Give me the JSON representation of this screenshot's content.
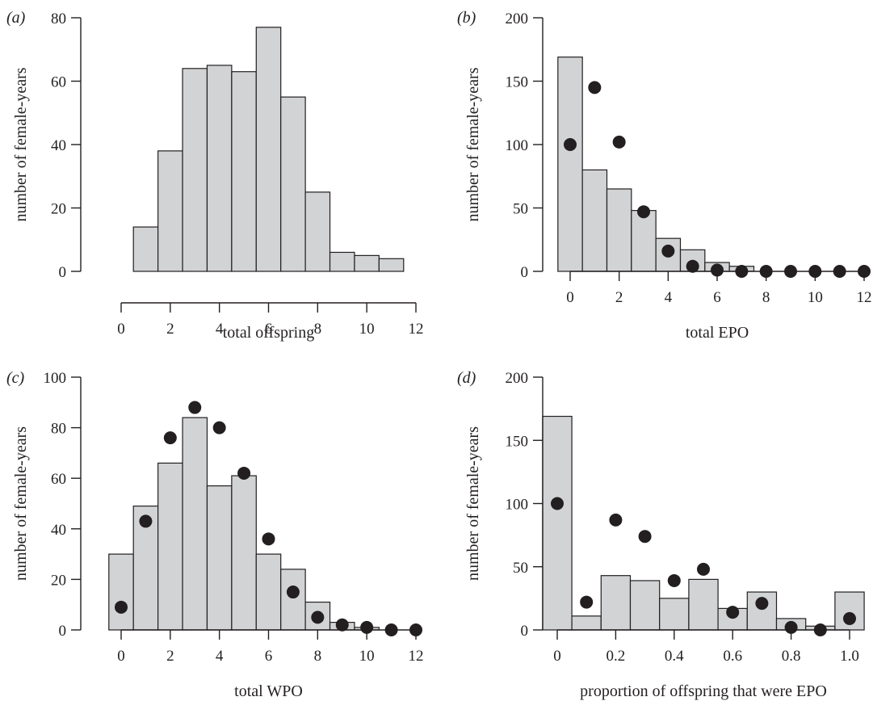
{
  "chart_data": [
    {
      "type": "bar",
      "panel_label": "(a)",
      "xlabel": "total offspring",
      "ylabel": "number of female-years",
      "xlim": [
        0,
        12
      ],
      "ylim": [
        0,
        80
      ],
      "xticks": [
        "0",
        "2",
        "4",
        "6",
        "8",
        "10",
        "12"
      ],
      "yticks": [
        "0",
        "20",
        "40",
        "60",
        "80"
      ],
      "grid": false,
      "series": [
        {
          "kind": "histogram",
          "bin_start": 0.5,
          "bin_width": 1,
          "values": [
            14,
            38,
            64,
            65,
            63,
            77,
            55,
            25,
            6,
            5,
            4
          ]
        }
      ]
    },
    {
      "type": "bar",
      "panel_label": "(b)",
      "xlabel": "total EPO",
      "ylabel": "number of female-years",
      "xlim": [
        0,
        12
      ],
      "ylim": [
        0,
        200
      ],
      "xticks": [
        "0",
        "2",
        "4",
        "6",
        "8",
        "10",
        "12"
      ],
      "yticks": [
        "0",
        "50",
        "100",
        "150",
        "200"
      ],
      "grid": false,
      "series": [
        {
          "kind": "histogram",
          "bin_start": -0.5,
          "bin_width": 1,
          "values": [
            169,
            80,
            65,
            48,
            26,
            17,
            7,
            4,
            0,
            0,
            0,
            0,
            0
          ]
        },
        {
          "kind": "points",
          "x": [
            0,
            1,
            2,
            3,
            4,
            5,
            6,
            7,
            8,
            9,
            10,
            11,
            12
          ],
          "values": [
            100,
            145,
            102,
            47,
            16,
            4,
            1,
            0,
            0,
            0,
            0,
            0,
            0
          ]
        }
      ]
    },
    {
      "type": "bar",
      "panel_label": "(c)",
      "xlabel": "total WPO",
      "ylabel": "number of female-years",
      "xlim": [
        0,
        12
      ],
      "ylim": [
        0,
        100
      ],
      "xticks": [
        "0",
        "2",
        "4",
        "6",
        "8",
        "10",
        "12"
      ],
      "yticks": [
        "0",
        "20",
        "40",
        "60",
        "80",
        "100"
      ],
      "grid": false,
      "series": [
        {
          "kind": "histogram",
          "bin_start": -0.5,
          "bin_width": 1,
          "values": [
            30,
            49,
            66,
            84,
            57,
            61,
            30,
            24,
            11,
            3,
            1,
            0,
            0
          ]
        },
        {
          "kind": "points",
          "x": [
            0,
            1,
            2,
            3,
            4,
            5,
            6,
            7,
            8,
            9,
            10,
            11,
            12
          ],
          "values": [
            9,
            43,
            76,
            88,
            80,
            62,
            36,
            15,
            5,
            2,
            1,
            0,
            0
          ]
        }
      ]
    },
    {
      "type": "bar",
      "panel_label": "(d)",
      "xlabel": "proportion of offspring that were EPO",
      "ylabel": "number of female-years",
      "xlim": [
        0,
        1
      ],
      "ylim": [
        0,
        200
      ],
      "xticks": [
        "0",
        "0.2",
        "0.4",
        "0.6",
        "0.8",
        "1.0"
      ],
      "yticks": [
        "0",
        "50",
        "100",
        "150",
        "200"
      ],
      "grid": false,
      "series": [
        {
          "kind": "histogram",
          "bin_start": -0.05,
          "bin_width": 0.1,
          "values": [
            169,
            11,
            43,
            39,
            25,
            40,
            17,
            30,
            9,
            3,
            30
          ]
        },
        {
          "kind": "points",
          "x": [
            0,
            0.1,
            0.2,
            0.3,
            0.4,
            0.5,
            0.6,
            0.7,
            0.8,
            0.9,
            1.0
          ],
          "values": [
            100,
            22,
            87,
            74,
            39,
            48,
            14,
            21,
            2,
            0,
            9
          ]
        }
      ]
    }
  ]
}
